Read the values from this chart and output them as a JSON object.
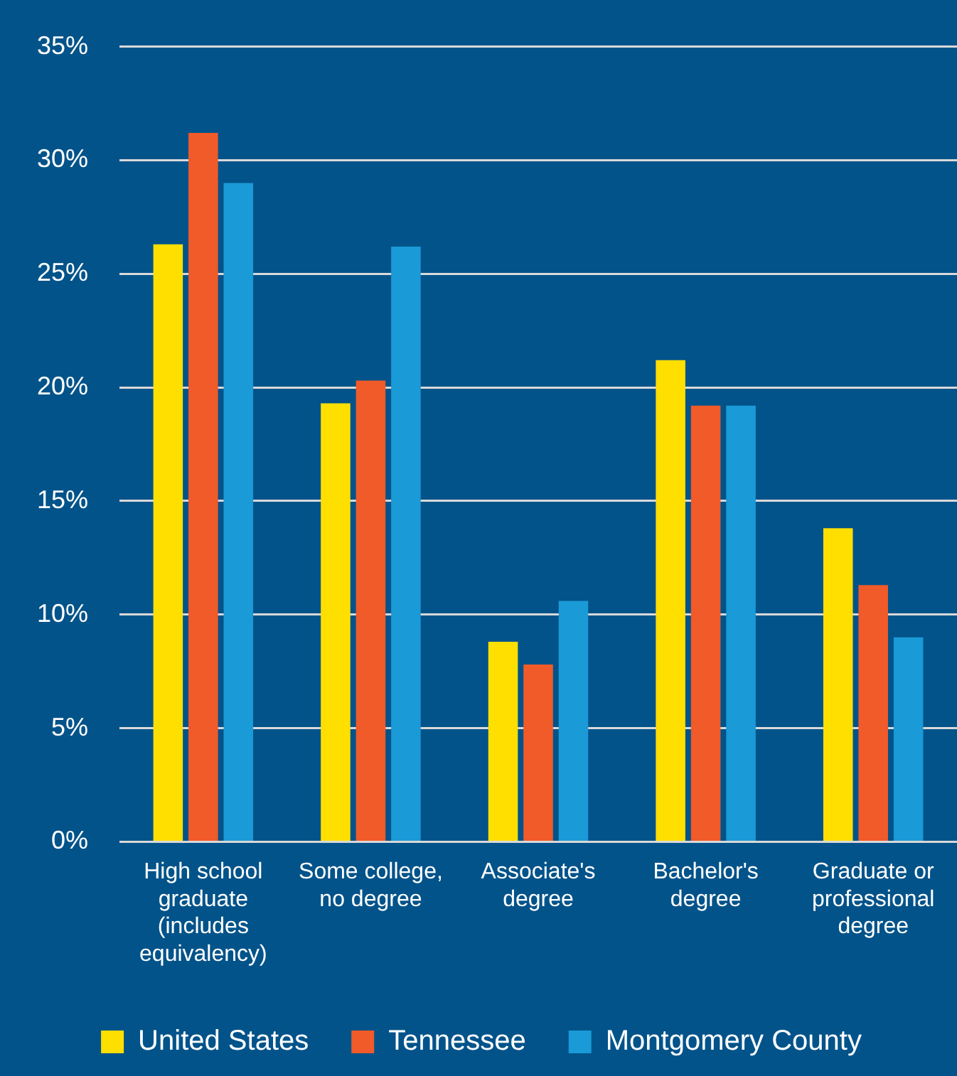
{
  "chart_data": {
    "type": "bar",
    "categories": [
      "High school graduate (includes equivalency)",
      "Some college, no degree",
      "Associate's degree",
      "Bachelor's degree",
      "Graduate or professional degree"
    ],
    "series": [
      {
        "name": "United States",
        "color": "#ffdf00",
        "values": [
          26.3,
          19.3,
          8.8,
          21.2,
          13.8
        ]
      },
      {
        "name": "Tennessee",
        "color": "#f15a29",
        "values": [
          31.2,
          20.3,
          7.8,
          19.2,
          11.3
        ]
      },
      {
        "name": "Montgomery County",
        "color": "#1a9ad6",
        "values": [
          29.0,
          26.2,
          10.6,
          19.2,
          9.0
        ]
      }
    ],
    "ylim": [
      0,
      35
    ],
    "yticks": [
      {
        "value": 0,
        "label": "0%"
      },
      {
        "value": 5,
        "label": "5%"
      },
      {
        "value": 10,
        "label": "10%"
      },
      {
        "value": 15,
        "label": "15%"
      },
      {
        "value": 20,
        "label": "20%"
      },
      {
        "value": 25,
        "label": "25%"
      },
      {
        "value": 30,
        "label": "30%"
      },
      {
        "value": 35,
        "label": "35%"
      }
    ],
    "grid": "y",
    "legend": "bottom"
  }
}
